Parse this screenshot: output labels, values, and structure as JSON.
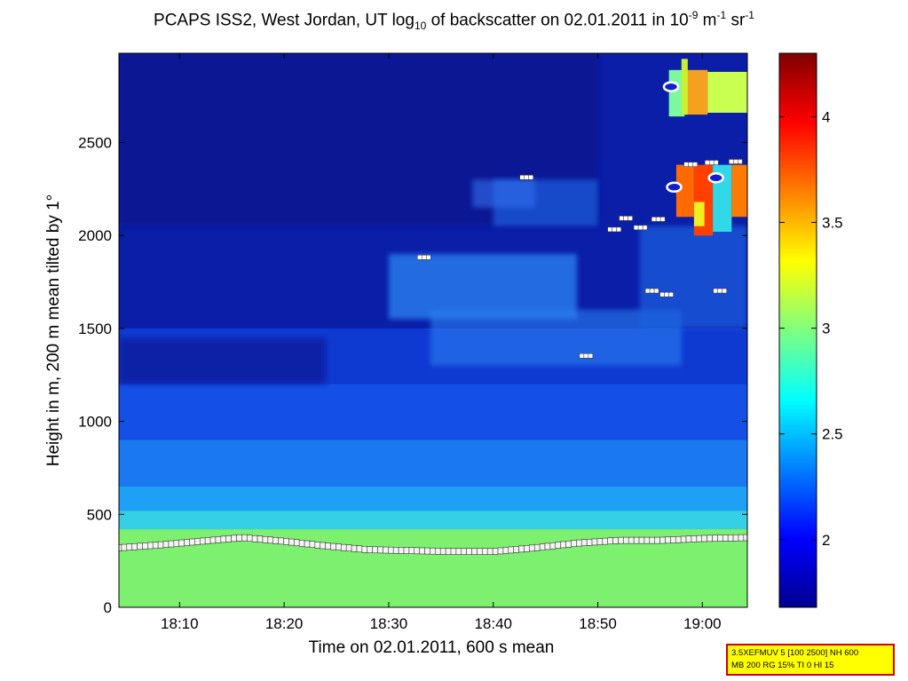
{
  "title": {
    "lead": "PCAPS ISS2, West Jordan, UT log",
    "sub1": "10",
    "mid": " of backscatter on 02.01.2011 in 10",
    "sup1": "-9",
    "mid2": " m",
    "sup2": "-1",
    "mid3": " sr",
    "sup3": "-1"
  },
  "info_box": {
    "line1": "3.5XEFMUV 5 [100 2500] NH 600",
    "line2": "MB 200 RG 15% TI 0 HI 15"
  },
  "colors": {
    "dark_blue": "#00008f",
    "blue": "#0000ff",
    "cyan": "#00ffff",
    "yellow": "#ffff00",
    "red": "#ff0000",
    "dark_red": "#800000"
  },
  "chart_data": {
    "type": "heatmap",
    "xlabel": "Time on 02.01.2011, 600 s mean",
    "ylabel": "Height in m, 200 m mean tilted by 1°",
    "x_ticks": [
      "18:10",
      "18:20",
      "18:30",
      "18:40",
      "18:50",
      "19:00"
    ],
    "x_tick_minutes": [
      10,
      20,
      30,
      40,
      50,
      60
    ],
    "xlim_minutes_after_1800": [
      4.2,
      64.3
    ],
    "ylim": [
      0,
      2980
    ],
    "y_ticks": [
      0,
      500,
      1000,
      1500,
      2000,
      2500
    ],
    "colorbar": {
      "range": [
        1.68,
        4.3
      ],
      "ticks": [
        2,
        2.5,
        3,
        3.5,
        4
      ],
      "tick_labels": [
        "2",
        "2.5",
        "3",
        "3.5",
        "4"
      ]
    },
    "mixing_layer_height": {
      "t": [
        4.2,
        8,
        12,
        16,
        20,
        24,
        28,
        32,
        36,
        40,
        44,
        48,
        52,
        56,
        60,
        64.3
      ],
      "h": [
        320,
        335,
        355,
        375,
        355,
        330,
        310,
        305,
        300,
        300,
        320,
        345,
        360,
        360,
        370,
        375
      ]
    },
    "cloud_layer_markers": [
      {
        "t": 33.0,
        "h": 1880
      },
      {
        "t": 42.8,
        "h": 2310
      },
      {
        "t": 48.5,
        "h": 1350
      },
      {
        "t": 51.2,
        "h": 2030
      },
      {
        "t": 52.3,
        "h": 2090
      },
      {
        "t": 53.7,
        "h": 2040
      },
      {
        "t": 54.8,
        "h": 1700
      },
      {
        "t": 55.4,
        "h": 2085
      },
      {
        "t": 56.2,
        "h": 1680
      },
      {
        "t": 58.5,
        "h": 2380
      },
      {
        "t": 60.5,
        "h": 2390
      },
      {
        "t": 62.8,
        "h": 2395
      },
      {
        "t": 61.3,
        "h": 1700
      }
    ],
    "grid": false,
    "legend": "none"
  }
}
